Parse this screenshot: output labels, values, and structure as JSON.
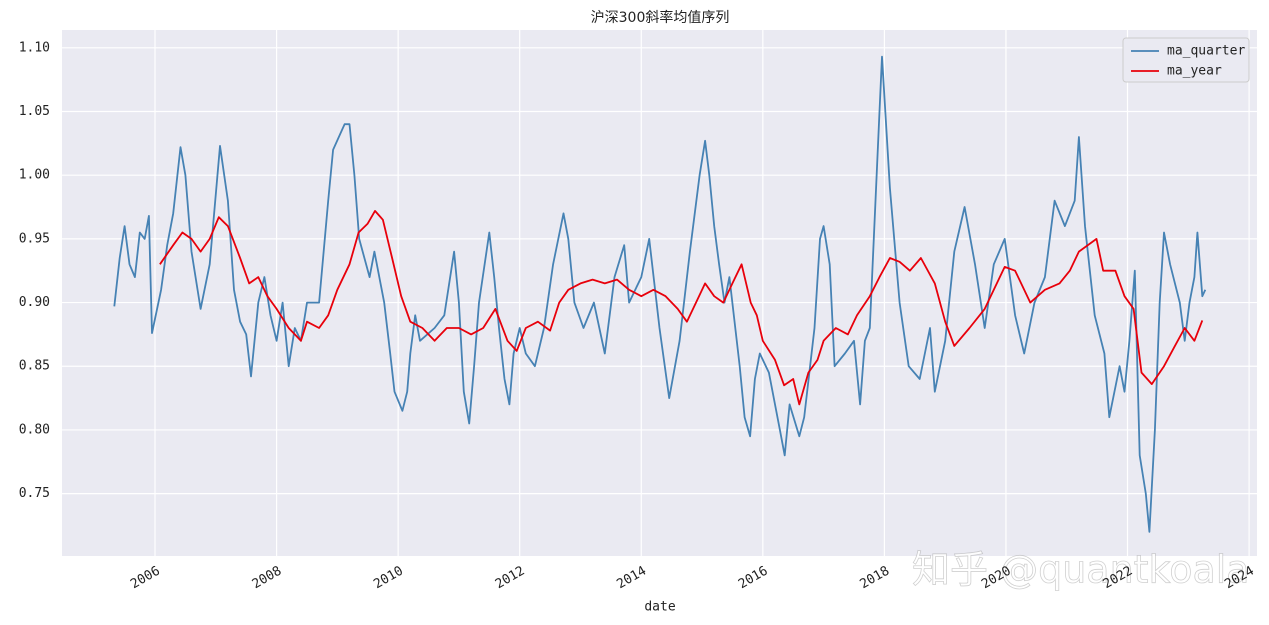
{
  "chart_data": {
    "type": "line",
    "title": "沪深300斜率均值序列",
    "x_label": "date",
    "watermark": "知乎 @quantkoala",
    "xlim": [
      2004.47,
      2024.13
    ],
    "xticks": [
      2006,
      2008,
      2010,
      2012,
      2014,
      2016,
      2018,
      2020,
      2022,
      2024
    ],
    "ylim": [
      0.701,
      1.114
    ],
    "yticks": [
      {
        "value": 0.75,
        "label": "0.75"
      },
      {
        "value": 0.8,
        "label": "0.80"
      },
      {
        "value": 0.85,
        "label": "0.85"
      },
      {
        "value": 0.9,
        "label": "0.90"
      },
      {
        "value": 0.95,
        "label": "0.95"
      },
      {
        "value": 1.0,
        "label": "1.00"
      },
      {
        "value": 1.05,
        "label": "1.05"
      },
      {
        "value": 1.1,
        "label": "1.10"
      }
    ],
    "grid": true,
    "legend": "upper right",
    "series": [
      {
        "name": "ma_quarter",
        "color": "#4682b4",
        "x": [
          2005.33,
          2005.42,
          2005.5,
          2005.58,
          2005.67,
          2005.75,
          2005.83,
          2005.9,
          2005.95,
          2006.1,
          2006.2,
          2006.3,
          2006.42,
          2006.5,
          2006.6,
          2006.75,
          2006.9,
          2007.07,
          2007.2,
          2007.3,
          2007.4,
          2007.5,
          2007.58,
          2007.7,
          2007.8,
          2007.9,
          2008.0,
          2008.1,
          2008.2,
          2008.3,
          2008.4,
          2008.5,
          2008.6,
          2008.7,
          2008.85,
          2008.93,
          2009.12,
          2009.2,
          2009.28,
          2009.36,
          2009.53,
          2009.61,
          2009.69,
          2009.77,
          2009.87,
          2009.94,
          2010.07,
          2010.15,
          2010.2,
          2010.28,
          2010.36,
          2010.6,
          2010.76,
          2010.92,
          2011.0,
          2011.08,
          2011.17,
          2011.25,
          2011.33,
          2011.5,
          2011.58,
          2011.66,
          2011.75,
          2011.83,
          2011.9,
          2012.0,
          2012.1,
          2012.25,
          2012.4,
          2012.55,
          2012.72,
          2012.8,
          2012.9,
          2013.05,
          2013.22,
          2013.4,
          2013.56,
          2013.72,
          2013.8,
          2014.0,
          2014.13,
          2014.3,
          2014.46,
          2014.63,
          2014.8,
          2014.96,
          2015.05,
          2015.12,
          2015.2,
          2015.28,
          2015.37,
          2015.45,
          2015.62,
          2015.7,
          2015.79,
          2015.87,
          2015.95,
          2016.1,
          2016.28,
          2016.36,
          2016.44,
          2016.6,
          2016.68,
          2016.85,
          2016.94,
          2017.0,
          2017.1,
          2017.18,
          2017.35,
          2017.5,
          2017.6,
          2017.68,
          2017.76,
          2017.92,
          2017.96,
          2018.09,
          2018.25,
          2018.4,
          2018.58,
          2018.75,
          2018.83,
          2019.0,
          2019.15,
          2019.32,
          2019.49,
          2019.65,
          2019.8,
          2019.98,
          2020.15,
          2020.3,
          2020.47,
          2020.64,
          2020.8,
          2020.97,
          2021.13,
          2021.2,
          2021.3,
          2021.46,
          2021.62,
          2021.7,
          2021.87,
          2021.95,
          2022.03,
          2022.12,
          2022.2,
          2022.3,
          2022.36,
          2022.45,
          2022.53,
          2022.6,
          2022.7,
          2022.86,
          2022.94,
          2023.02,
          2023.1,
          2023.15,
          2023.23,
          2023.28
        ],
        "values": [
          0.897,
          0.935,
          0.96,
          0.93,
          0.92,
          0.955,
          0.95,
          0.968,
          0.876,
          0.91,
          0.945,
          0.97,
          1.022,
          1.0,
          0.94,
          0.895,
          0.93,
          1.023,
          0.98,
          0.91,
          0.885,
          0.875,
          0.842,
          0.9,
          0.92,
          0.89,
          0.87,
          0.9,
          0.85,
          0.88,
          0.87,
          0.9,
          0.9,
          0.9,
          0.98,
          1.02,
          1.04,
          1.04,
          1.0,
          0.95,
          0.92,
          0.94,
          0.92,
          0.9,
          0.86,
          0.83,
          0.815,
          0.83,
          0.86,
          0.89,
          0.87,
          0.88,
          0.89,
          0.94,
          0.9,
          0.83,
          0.805,
          0.85,
          0.9,
          0.955,
          0.92,
          0.88,
          0.84,
          0.82,
          0.86,
          0.88,
          0.86,
          0.85,
          0.88,
          0.93,
          0.97,
          0.95,
          0.9,
          0.88,
          0.9,
          0.86,
          0.92,
          0.945,
          0.9,
          0.92,
          0.95,
          0.88,
          0.825,
          0.87,
          0.94,
          1.0,
          1.027,
          1.0,
          0.96,
          0.93,
          0.9,
          0.92,
          0.85,
          0.81,
          0.795,
          0.84,
          0.86,
          0.845,
          0.8,
          0.78,
          0.82,
          0.795,
          0.81,
          0.88,
          0.95,
          0.96,
          0.93,
          0.85,
          0.86,
          0.87,
          0.82,
          0.87,
          0.88,
          1.05,
          1.093,
          0.99,
          0.9,
          0.85,
          0.84,
          0.88,
          0.83,
          0.87,
          0.94,
          0.975,
          0.93,
          0.88,
          0.93,
          0.95,
          0.89,
          0.86,
          0.9,
          0.92,
          0.98,
          0.96,
          0.98,
          1.03,
          0.96,
          0.89,
          0.86,
          0.81,
          0.85,
          0.83,
          0.87,
          0.925,
          0.78,
          0.75,
          0.72,
          0.8,
          0.9,
          0.955,
          0.93,
          0.9,
          0.87,
          0.9,
          0.92,
          0.955,
          0.905,
          0.91
        ]
      },
      {
        "name": "ma_year",
        "color": "#e8000b",
        "x": [
          2006.08,
          2006.3,
          2006.45,
          2006.6,
          2006.75,
          2006.9,
          2007.05,
          2007.2,
          2007.4,
          2007.55,
          2007.7,
          2007.85,
          2008.0,
          2008.2,
          2008.4,
          2008.5,
          2008.7,
          2008.85,
          2009.0,
          2009.2,
          2009.35,
          2009.5,
          2009.62,
          2009.75,
          2009.9,
          2010.05,
          2010.2,
          2010.4,
          2010.6,
          2010.8,
          2011.0,
          2011.2,
          2011.4,
          2011.6,
          2011.8,
          2011.95,
          2012.1,
          2012.3,
          2012.5,
          2012.65,
          2012.8,
          2013.0,
          2013.2,
          2013.4,
          2013.6,
          2013.8,
          2014.0,
          2014.2,
          2014.4,
          2014.6,
          2014.75,
          2014.9,
          2015.05,
          2015.2,
          2015.35,
          2015.5,
          2015.65,
          2015.8,
          2015.9,
          2016.0,
          2016.2,
          2016.35,
          2016.5,
          2016.6,
          2016.75,
          2016.9,
          2017.0,
          2017.2,
          2017.4,
          2017.55,
          2017.76,
          2017.92,
          2018.09,
          2018.25,
          2018.42,
          2018.6,
          2018.83,
          2019.0,
          2019.15,
          2019.4,
          2019.65,
          2019.8,
          2019.98,
          2020.15,
          2020.4,
          2020.64,
          2020.88,
          2021.05,
          2021.2,
          2021.49,
          2021.6,
          2021.8,
          2021.95,
          2022.1,
          2022.23,
          2022.4,
          2022.6,
          2022.77,
          2022.94,
          2023.1,
          2023.23
        ],
        "values": [
          0.93,
          0.945,
          0.955,
          0.95,
          0.94,
          0.95,
          0.967,
          0.96,
          0.935,
          0.915,
          0.92,
          0.905,
          0.895,
          0.88,
          0.87,
          0.885,
          0.88,
          0.89,
          0.91,
          0.93,
          0.955,
          0.962,
          0.972,
          0.965,
          0.935,
          0.905,
          0.885,
          0.88,
          0.87,
          0.88,
          0.88,
          0.875,
          0.88,
          0.895,
          0.87,
          0.862,
          0.88,
          0.885,
          0.878,
          0.9,
          0.91,
          0.915,
          0.918,
          0.915,
          0.918,
          0.91,
          0.905,
          0.91,
          0.905,
          0.895,
          0.885,
          0.9,
          0.915,
          0.905,
          0.9,
          0.915,
          0.93,
          0.9,
          0.89,
          0.87,
          0.855,
          0.835,
          0.84,
          0.82,
          0.845,
          0.855,
          0.87,
          0.88,
          0.875,
          0.89,
          0.905,
          0.92,
          0.935,
          0.932,
          0.925,
          0.935,
          0.915,
          0.885,
          0.866,
          0.88,
          0.895,
          0.91,
          0.928,
          0.925,
          0.9,
          0.91,
          0.915,
          0.925,
          0.94,
          0.95,
          0.925,
          0.925,
          0.905,
          0.895,
          0.845,
          0.836,
          0.85,
          0.865,
          0.88,
          0.87,
          0.886
        ]
      }
    ]
  }
}
